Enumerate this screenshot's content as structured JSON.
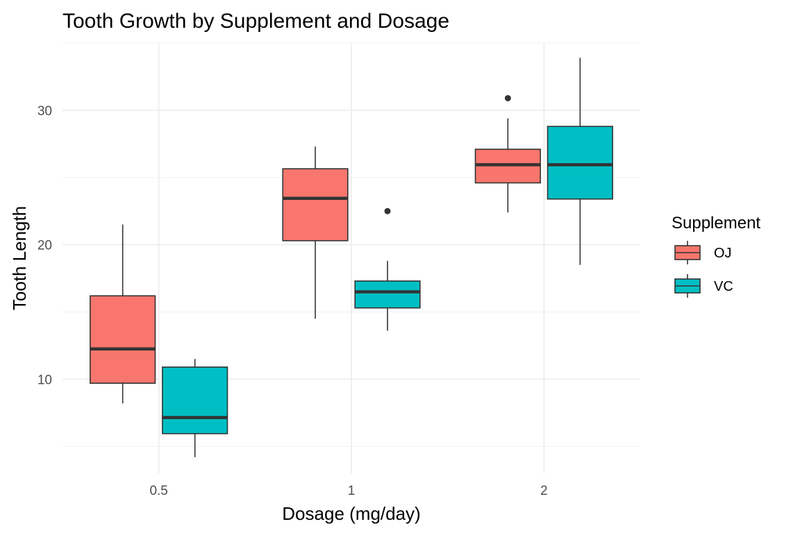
{
  "chart_data": {
    "type": "boxplot",
    "title": "Tooth Growth by Supplement and Dosage",
    "xlabel": "Dosage (mg/day)",
    "ylabel": "Tooth Length",
    "categories": [
      "0.5",
      "1",
      "2"
    ],
    "ylim": [
      3,
      35
    ],
    "yticks": [
      10,
      20,
      30
    ],
    "grid": true,
    "legend": {
      "title": "Supplement",
      "position": "right"
    },
    "series": [
      {
        "name": "OJ",
        "color": "#F8766D",
        "boxes": [
          {
            "category": "0.5",
            "min": 8.2,
            "q1": 9.7,
            "median": 12.25,
            "q3": 16.2,
            "max": 21.5,
            "outliers": []
          },
          {
            "category": "1",
            "min": 14.5,
            "q1": 20.3,
            "median": 23.45,
            "q3": 25.65,
            "max": 27.3,
            "outliers": []
          },
          {
            "category": "2",
            "min": 22.4,
            "q1": 24.6,
            "median": 25.95,
            "q3": 27.1,
            "max": 29.4,
            "outliers": [
              30.9
            ]
          }
        ]
      },
      {
        "name": "VC",
        "color": "#00BFC4",
        "boxes": [
          {
            "category": "0.5",
            "min": 4.2,
            "q1": 5.95,
            "median": 7.15,
            "q3": 10.9,
            "max": 11.5,
            "outliers": []
          },
          {
            "category": "1",
            "min": 13.6,
            "q1": 15.3,
            "median": 16.5,
            "q3": 17.3,
            "max": 18.8,
            "outliers": [
              22.5
            ]
          },
          {
            "category": "2",
            "min": 18.5,
            "q1": 23.4,
            "median": 25.95,
            "q3": 28.8,
            "max": 33.9,
            "outliers": []
          }
        ]
      }
    ]
  }
}
